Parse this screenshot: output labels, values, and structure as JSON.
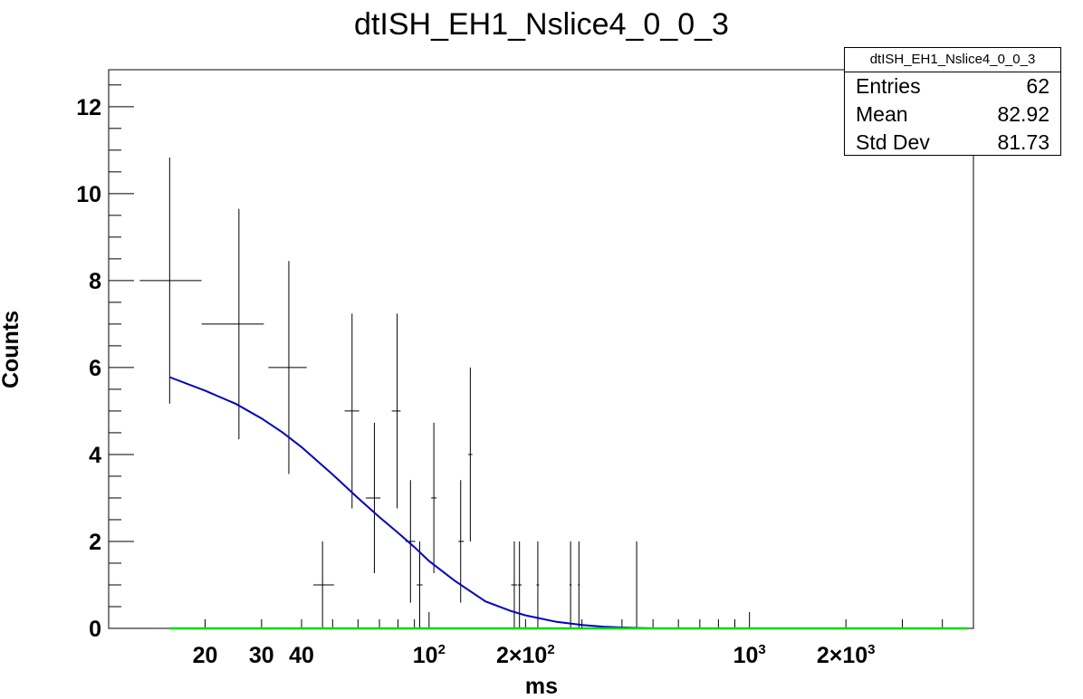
{
  "chart_data": {
    "type": "scatter",
    "title": "dtISH_EH1_Nslice4_0_0_3",
    "xlabel": "ms",
    "ylabel": "Counts",
    "x_scale": "log",
    "xlim": [
      10,
      5000
    ],
    "ylim": [
      0,
      12.85
    ],
    "y_ticks": [
      0,
      2,
      4,
      6,
      8,
      10,
      12
    ],
    "x_tick_labels": [
      {
        "value": 20,
        "label": "20"
      },
      {
        "value": 30,
        "label": "30"
      },
      {
        "value": 40,
        "label": "40"
      },
      {
        "value": 100,
        "label": "10",
        "sup": "2"
      },
      {
        "value": 200,
        "label": "2×10",
        "sup": "2"
      },
      {
        "value": 1000,
        "label": "10",
        "sup": "3"
      },
      {
        "value": 2000,
        "label": "2×10",
        "sup": "3"
      }
    ],
    "histogram": {
      "name": "dtISH_EH1_Nslice4_0_0_3",
      "color": "#000000",
      "points": [
        {
          "x": 15.5,
          "xlo": 12.5,
          "xhi": 19.5,
          "y": 8,
          "ylo": 5.17,
          "yhi": 10.83
        },
        {
          "x": 25.5,
          "xlo": 19.5,
          "xhi": 30.5,
          "y": 7,
          "ylo": 4.35,
          "yhi": 9.65
        },
        {
          "x": 36.5,
          "xlo": 31.5,
          "xhi": 41.5,
          "y": 6,
          "ylo": 3.55,
          "yhi": 8.45
        },
        {
          "x": 46.5,
          "xlo": 43.5,
          "xhi": 50.5,
          "y": 1,
          "ylo": 0,
          "yhi": 2
        },
        {
          "x": 57.5,
          "xlo": 54.5,
          "xhi": 60.5,
          "y": 5,
          "ylo": 2.76,
          "yhi": 7.24
        },
        {
          "x": 67.5,
          "xlo": 63.5,
          "xhi": 70.5,
          "y": 3,
          "ylo": 1.27,
          "yhi": 4.73
        },
        {
          "x": 79.5,
          "xlo": 76.5,
          "xhi": 81.5,
          "y": 5,
          "ylo": 2.76,
          "yhi": 7.24
        },
        {
          "x": 87.5,
          "xlo": 84.5,
          "xhi": 90.5,
          "y": 2,
          "ylo": 0.59,
          "yhi": 3.41
        },
        {
          "x": 93.5,
          "xlo": 91.5,
          "xhi": 95.5,
          "y": 1,
          "ylo": 0,
          "yhi": 2
        },
        {
          "x": 103.5,
          "xlo": 101.5,
          "xhi": 105.5,
          "y": 3,
          "ylo": 1.27,
          "yhi": 4.73
        },
        {
          "x": 125.5,
          "xlo": 123.5,
          "xhi": 128.5,
          "y": 2,
          "ylo": 0.59,
          "yhi": 3.41
        },
        {
          "x": 134.5,
          "xlo": 132.5,
          "xhi": 136.5,
          "y": 4,
          "ylo": 2,
          "yhi": 6
        },
        {
          "x": 184.5,
          "xlo": 180.5,
          "xhi": 188.5,
          "y": 1,
          "ylo": 0,
          "yhi": 2
        },
        {
          "x": 191.5,
          "xlo": 189.5,
          "xhi": 194.5,
          "y": 1,
          "ylo": 0,
          "yhi": 2
        },
        {
          "x": 218.5,
          "xlo": 216.5,
          "xhi": 220.5,
          "y": 1,
          "ylo": 0,
          "yhi": 2
        },
        {
          "x": 276.5,
          "xlo": 274.5,
          "xhi": 278.5,
          "y": 1,
          "ylo": 0,
          "yhi": 2
        },
        {
          "x": 293.5,
          "xlo": 291.5,
          "xhi": 295.5,
          "y": 1,
          "ylo": 0,
          "yhi": 2
        },
        {
          "x": 444.5,
          "xlo": 443.5,
          "xhi": 445.5,
          "y": 1,
          "ylo": 0,
          "yhi": 2
        }
      ]
    },
    "fit_curve": {
      "color": "#0000cc",
      "x": [
        15.5,
        20,
        25,
        30,
        35,
        40,
        50,
        60,
        70,
        80,
        90,
        100,
        120,
        150,
        180,
        200,
        250,
        300,
        350,
        400,
        450,
        500
      ],
      "y": [
        5.78,
        5.47,
        5.16,
        4.83,
        4.5,
        4.17,
        3.54,
        3.0,
        2.56,
        2.2,
        1.87,
        1.55,
        1.1,
        0.62,
        0.4,
        0.3,
        0.15,
        0.08,
        0.04,
        0.02,
        0.01,
        0.0
      ]
    },
    "baseline": {
      "color": "#00dd00",
      "x": [
        15.5,
        4800
      ],
      "y": [
        0,
        0
      ]
    },
    "stats": {
      "title": "dtISH_EH1_Nslice4_0_0_3",
      "rows": [
        {
          "label": "Entries",
          "value": "62"
        },
        {
          "label": "Mean",
          "value": "82.92"
        },
        {
          "label": "Std Dev",
          "value": "81.73"
        }
      ]
    }
  }
}
